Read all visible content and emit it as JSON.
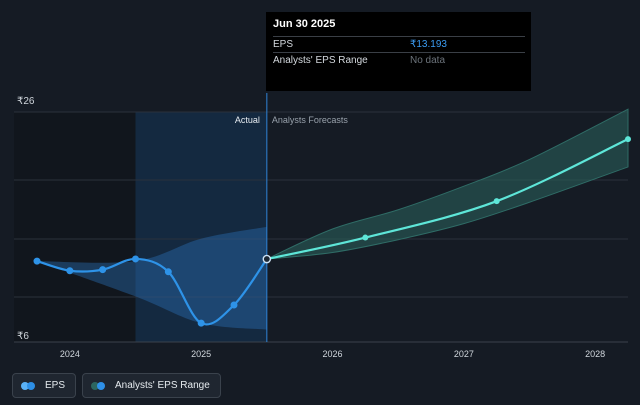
{
  "tooltip": {
    "date": "Jun 30 2025",
    "rows": [
      {
        "label": "EPS",
        "value": "₹13.193"
      },
      {
        "label": "Analysts' EPS Range",
        "value": "No data"
      }
    ]
  },
  "legend": [
    {
      "label": "EPS",
      "colors": [
        "#5ab1f5",
        "#2d8fe6"
      ]
    },
    {
      "label": "Analysts' EPS Range",
      "colors": [
        "#2c6660",
        "#2e90e8"
      ]
    }
  ],
  "chart_data": {
    "type": "line",
    "ylim": [
      6,
      26
    ],
    "ytick_labels": [
      {
        "value": 26,
        "label": "₹26"
      },
      {
        "value": 6,
        "label": "₹6"
      }
    ],
    "xlim": [
      2023.75,
      2028.25
    ],
    "xticks": [
      {
        "value": 2024,
        "label": "2024"
      },
      {
        "value": 2025,
        "label": "2025"
      },
      {
        "value": 2026,
        "label": "2026"
      },
      {
        "value": 2027,
        "label": "2027"
      },
      {
        "value": 2028,
        "label": "2028"
      }
    ],
    "region_labels": {
      "actual": "Actual",
      "forecast": "Analysts Forecasts"
    },
    "forecast_start": 2025.5,
    "past_shade_start": 2024.5,
    "colors": {
      "eps": "#2e93e8",
      "forecast": "#5ee6d8",
      "range_fill": "#2a5f5a"
    },
    "series": [
      {
        "name": "EPS",
        "x": [
          2023.75,
          2024.0,
          2024.25,
          2024.5,
          2024.75,
          2025.0,
          2025.25,
          2025.5
        ],
        "y": [
          13.0,
          12.1,
          12.2,
          13.2,
          12.0,
          7.2,
          8.9,
          13.193
        ]
      },
      {
        "name": "EPS Forecast",
        "x": [
          2025.5,
          2026.25,
          2027.25,
          2028.25
        ],
        "y": [
          13.193,
          15.2,
          18.6,
          24.4
        ]
      }
    ],
    "past_band": {
      "x": [
        2023.75,
        2024.5,
        2025.0,
        2025.5
      ],
      "upper": [
        13.0,
        13.0,
        15.1,
        16.2
      ],
      "lower": [
        13.0,
        9.7,
        7.2,
        6.6
      ]
    },
    "forecast_band": {
      "x": [
        2025.5,
        2026.0,
        2026.5,
        2027.0,
        2027.5,
        2028.25
      ],
      "upper": [
        13.193,
        16.0,
        17.8,
        20.0,
        22.5,
        27.2
      ],
      "lower": [
        13.193,
        13.8,
        15.0,
        16.5,
        18.5,
        21.8
      ]
    }
  }
}
